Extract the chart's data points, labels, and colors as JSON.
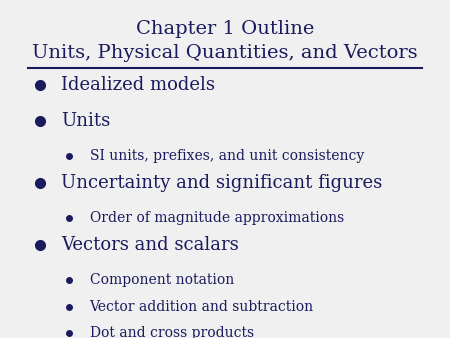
{
  "title_line1": "Chapter 1 Outline",
  "title_line2": "Units, Physical Quantities, and Vectors",
  "title_color": "#1a1a5e",
  "title_fontsize": 14,
  "bg_color": "#f0f0f0",
  "line_color": "#1a1a5e",
  "bullet_color": "#1a1a5e",
  "text_color": "#1a1a5e",
  "items": [
    {
      "level": 1,
      "text": "Idealized models",
      "fontsize": 13
    },
    {
      "level": 1,
      "text": "Units",
      "fontsize": 13
    },
    {
      "level": 2,
      "text": "SI units, prefixes, and unit consistency",
      "fontsize": 10
    },
    {
      "level": 1,
      "text": "Uncertainty and significant figures",
      "fontsize": 13
    },
    {
      "level": 2,
      "text": "Order of magnitude approximations",
      "fontsize": 10
    },
    {
      "level": 1,
      "text": "Vectors and scalars",
      "fontsize": 13
    },
    {
      "level": 2,
      "text": "Component notation",
      "fontsize": 10
    },
    {
      "level": 2,
      "text": "Vector addition and subtraction",
      "fontsize": 10
    },
    {
      "level": 2,
      "text": "Dot and cross products",
      "fontsize": 10
    }
  ]
}
